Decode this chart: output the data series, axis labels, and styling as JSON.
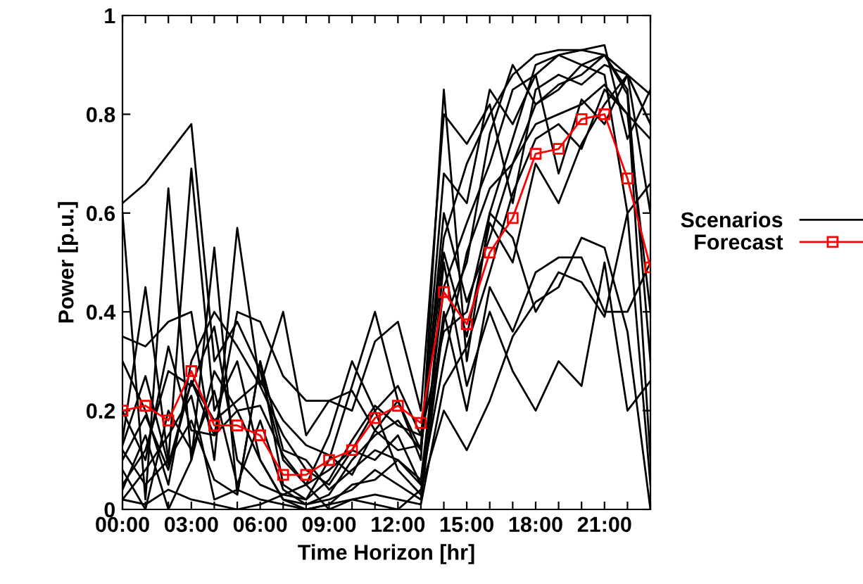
{
  "chart_data": {
    "type": "line",
    "xlabel": "Time Horizon [hr]",
    "ylabel": "Power [p.u.]",
    "x": [
      0,
      1,
      2,
      3,
      4,
      5,
      6,
      7,
      8,
      9,
      10,
      11,
      12,
      13,
      14,
      15,
      16,
      17,
      18,
      19,
      20,
      21,
      22,
      23
    ],
    "xlim": [
      0,
      23
    ],
    "ylim": [
      0,
      1
    ],
    "xticks": [
      {
        "value": 0,
        "label": "00:00"
      },
      {
        "value": 1,
        "label": null
      },
      {
        "value": 2,
        "label": null
      },
      {
        "value": 3,
        "label": "03:00"
      },
      {
        "value": 4,
        "label": null
      },
      {
        "value": 5,
        "label": null
      },
      {
        "value": 6,
        "label": "06:00"
      },
      {
        "value": 7,
        "label": null
      },
      {
        "value": 8,
        "label": null
      },
      {
        "value": 9,
        "label": "09:00"
      },
      {
        "value": 10,
        "label": null
      },
      {
        "value": 11,
        "label": null
      },
      {
        "value": 12,
        "label": "12:00"
      },
      {
        "value": 13,
        "label": null
      },
      {
        "value": 14,
        "label": null
      },
      {
        "value": 15,
        "label": "15:00"
      },
      {
        "value": 16,
        "label": null
      },
      {
        "value": 17,
        "label": null
      },
      {
        "value": 18,
        "label": "18:00"
      },
      {
        "value": 19,
        "label": null
      },
      {
        "value": 20,
        "label": null
      },
      {
        "value": 21,
        "label": "21:00"
      },
      {
        "value": 22,
        "label": null
      },
      {
        "value": 23,
        "label": null
      }
    ],
    "yticks": [
      0,
      0.2,
      0.4,
      0.6,
      0.8,
      1
    ],
    "grid": false,
    "legend": "right",
    "series": [
      {
        "name": "Scenarios",
        "color": "#000000",
        "marker": "none",
        "values": [
          0.62,
          0.66,
          0.72,
          0.78,
          0.3,
          0.38,
          0.28,
          0.1,
          0.05,
          0.08,
          0.12,
          0.2,
          0.25,
          0.15,
          0.55,
          0.7,
          0.8,
          0.88,
          0.92,
          0.93,
          0.93,
          0.92,
          0.85,
          0.3
        ]
      },
      {
        "color": "#000000",
        "marker": "none",
        "values": [
          0.6,
          0.02,
          0.65,
          0.1,
          0.53,
          0.03,
          0.3,
          0.05,
          0.02,
          0.1,
          0.25,
          0.4,
          0.22,
          0.1,
          0.85,
          0.3,
          0.6,
          0.75,
          0.9,
          0.92,
          0.9,
          0.88,
          0.6,
          0.05
        ]
      },
      {
        "color": "#000000",
        "marker": "none",
        "values": [
          0.35,
          0.33,
          0.38,
          0.4,
          0.1,
          0.57,
          0.25,
          0.4,
          0.15,
          0.22,
          0.2,
          0.34,
          0.38,
          0.2,
          0.8,
          0.74,
          0.82,
          0.62,
          0.85,
          0.88,
          0.86,
          0.9,
          0.88,
          0.78
        ]
      },
      {
        "color": "#000000",
        "marker": "none",
        "values": [
          0.14,
          0.45,
          0.1,
          0.69,
          0.2,
          0.3,
          0.1,
          0.02,
          0.01,
          0.03,
          0.1,
          0.15,
          0.18,
          0.12,
          0.6,
          0.42,
          0.55,
          0.7,
          0.82,
          0.85,
          0.9,
          0.92,
          0.84,
          0.1
        ]
      },
      {
        "color": "#000000",
        "marker": "none",
        "values": [
          0.3,
          0.2,
          0.05,
          0.3,
          0.4,
          0.33,
          0.25,
          0.15,
          0.08,
          0.05,
          0.12,
          0.1,
          0.15,
          0.05,
          0.4,
          0.2,
          0.45,
          0.36,
          0.48,
          0.51,
          0.51,
          0.4,
          0.4,
          0.5
        ]
      },
      {
        "color": "#000000",
        "marker": "none",
        "values": [
          0.1,
          0.19,
          0.08,
          0.26,
          0.15,
          0.2,
          0.21,
          0.11,
          0.05,
          0.15,
          0.3,
          0.2,
          0.08,
          0.03,
          0.5,
          0.25,
          0.4,
          0.28,
          0.2,
          0.3,
          0.25,
          0.5,
          0.2,
          0.26
        ]
      },
      {
        "color": "#000000",
        "marker": "none",
        "values": [
          0.05,
          0.12,
          0.28,
          0.25,
          0.37,
          0.1,
          0.05,
          0.03,
          0.02,
          0.06,
          0.14,
          0.21,
          0.17,
          0.15,
          0.36,
          0.4,
          0.6,
          0.55,
          0.4,
          0.48,
          0.46,
          0.39,
          0.6,
          0.66
        ]
      },
      {
        "color": "#000000",
        "marker": "none",
        "values": [
          0.02,
          0.08,
          0.15,
          0.23,
          0.02,
          0.04,
          0.02,
          0.01,
          0.0,
          0.01,
          0.05,
          0.06,
          0.1,
          0.05,
          0.3,
          0.52,
          0.65,
          0.7,
          0.78,
          0.8,
          0.82,
          0.86,
          0.8,
          0.75
        ]
      },
      {
        "color": "#000000",
        "marker": "none",
        "values": [
          0.12,
          0.05,
          0.1,
          0.18,
          0.06,
          0.03,
          0.3,
          0.12,
          0.1,
          0.04,
          0.08,
          0.12,
          0.1,
          0.06,
          0.45,
          0.58,
          0.7,
          0.85,
          0.88,
          0.92,
          0.93,
          0.94,
          0.75,
          0.85
        ]
      },
      {
        "color": "#000000",
        "marker": "none",
        "values": [
          0.08,
          0.0,
          0.2,
          0.12,
          0.24,
          0.05,
          0.18,
          0.04,
          0.01,
          0.02,
          0.04,
          0.08,
          0.05,
          0.02,
          0.38,
          0.5,
          0.76,
          0.9,
          0.82,
          0.86,
          0.88,
          0.92,
          0.88,
          0.6
        ]
      },
      {
        "color": "#000000",
        "marker": "none",
        "values": [
          0.04,
          0.15,
          0.0,
          0.1,
          0.28,
          0.2,
          0.1,
          0.02,
          0.0,
          0.01,
          0.02,
          0.03,
          0.02,
          0.01,
          0.25,
          0.33,
          0.48,
          0.64,
          0.75,
          0.78,
          0.73,
          0.85,
          0.8,
          0.4
        ]
      },
      {
        "color": "#000000",
        "marker": "none",
        "values": [
          0.13,
          0.27,
          0.09,
          0.26,
          0.18,
          0.22,
          0.26,
          0.18,
          0.13,
          0.11,
          0.07,
          0.16,
          0.22,
          0.12,
          0.52,
          0.35,
          0.58,
          0.5,
          0.7,
          0.62,
          0.74,
          0.82,
          0.88,
          0.84
        ]
      },
      {
        "color": "#000000",
        "marker": "none",
        "values": [
          0.02,
          0.01,
          0.04,
          0.02,
          0.01,
          0.0,
          0.01,
          0.03,
          0.05,
          0.0,
          0.02,
          0.01,
          0.0,
          0.04,
          0.2,
          0.12,
          0.22,
          0.35,
          0.42,
          0.45,
          0.55,
          0.53,
          0.36,
          0.0
        ]
      },
      {
        "color": "#000000",
        "marker": "none",
        "values": [
          0.2,
          0.1,
          0.33,
          0.16,
          0.15,
          0.4,
          0.38,
          0.27,
          0.22,
          0.22,
          0.24,
          0.16,
          0.12,
          0.13,
          0.68,
          0.62,
          0.85,
          0.78,
          0.88,
          0.68,
          0.83,
          0.78,
          0.88,
          0.78
        ]
      },
      {
        "name": "Forecast",
        "color": "#ff0000",
        "marker": "square",
        "values": [
          0.2,
          0.21,
          0.18,
          0.28,
          0.17,
          0.17,
          0.15,
          0.07,
          0.07,
          0.1,
          0.12,
          0.185,
          0.21,
          0.175,
          0.44,
          0.375,
          0.52,
          0.59,
          0.72,
          0.73,
          0.79,
          0.8,
          0.67,
          0.49
        ]
      }
    ]
  }
}
